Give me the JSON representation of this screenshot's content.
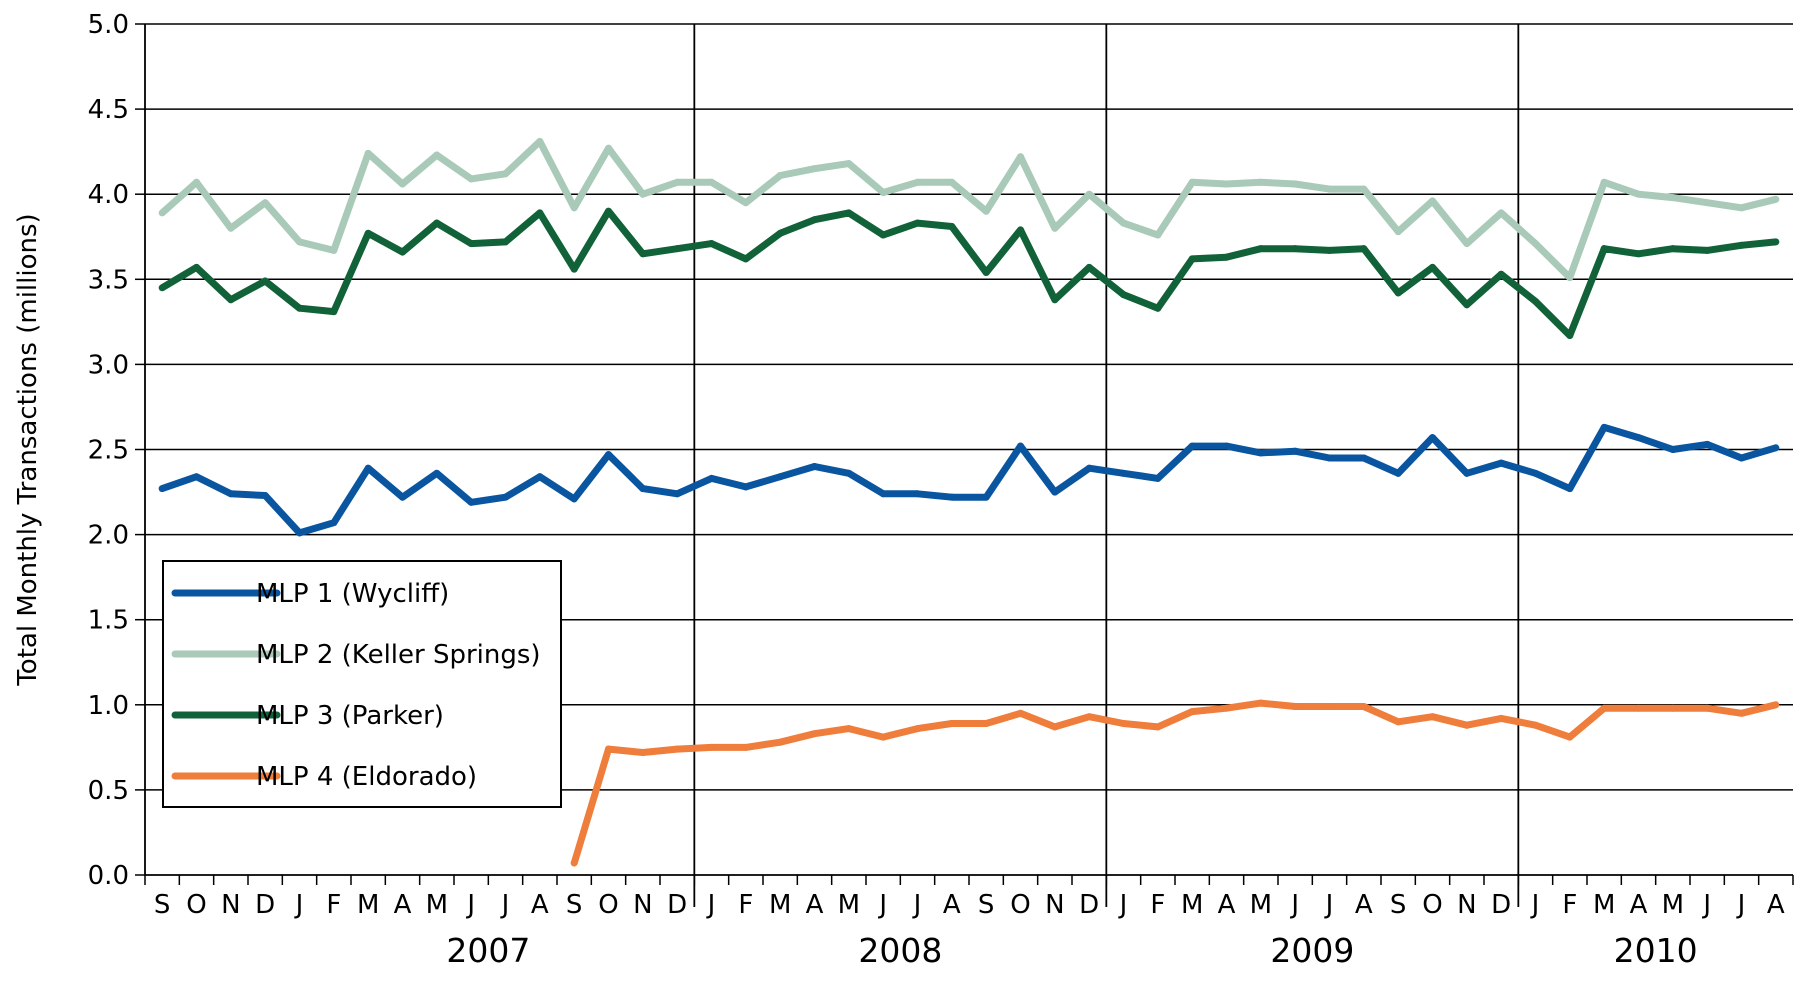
{
  "chart_data": {
    "type": "line",
    "title": "",
    "ylabel": "Total Monthly Transactions (millions)",
    "xlabel": "",
    "ylim": [
      0,
      5
    ],
    "yticks": [
      "0.0",
      "0.5",
      "1.0",
      "1.5",
      "2.0",
      "2.5",
      "3.0",
      "3.5",
      "4.0",
      "4.5",
      "5.0"
    ],
    "grid": true,
    "legend_position": "bottom-left",
    "month_labels": [
      "S",
      "O",
      "N",
      "D",
      "J",
      "F",
      "M",
      "A",
      "M",
      "J",
      "J",
      "A",
      "S",
      "O",
      "N",
      "D",
      "J",
      "F",
      "M",
      "A",
      "M",
      "J",
      "J",
      "A",
      "S",
      "O",
      "N",
      "D",
      "J",
      "F",
      "M",
      "A",
      "M",
      "J",
      "J",
      "A",
      "S",
      "O",
      "N",
      "D",
      "J",
      "F",
      "M",
      "A",
      "M",
      "J",
      "J",
      "A"
    ],
    "years": [
      {
        "label": "2007",
        "start_index": 4,
        "end_index": 15
      },
      {
        "label": "2008",
        "start_index": 16,
        "end_index": 27
      },
      {
        "label": "2009",
        "start_index": 28,
        "end_index": 39
      },
      {
        "label": "2010",
        "start_index": 40,
        "end_index": 47
      }
    ],
    "series": [
      {
        "name": "MLP 1 (Wycliff)",
        "color": "#0a55a0",
        "values": [
          2.27,
          2.34,
          2.24,
          2.23,
          2.01,
          2.07,
          2.39,
          2.22,
          2.36,
          2.19,
          2.22,
          2.34,
          2.21,
          2.47,
          2.27,
          2.24,
          2.33,
          2.28,
          2.34,
          2.4,
          2.36,
          2.24,
          2.24,
          2.22,
          2.22,
          2.52,
          2.25,
          2.39,
          2.36,
          2.33,
          2.52,
          2.52,
          2.48,
          2.49,
          2.45,
          2.45,
          2.36,
          2.57,
          2.36,
          2.42,
          2.36,
          2.27,
          2.63,
          2.57,
          2.5,
          2.53,
          2.45,
          2.51
        ]
      },
      {
        "name": "MLP 2 (Keller Springs)",
        "color": "#a9c9b9",
        "values": [
          3.89,
          4.07,
          3.8,
          3.95,
          3.72,
          3.67,
          4.24,
          4.06,
          4.23,
          4.09,
          4.12,
          4.31,
          3.92,
          4.27,
          4.0,
          4.07,
          4.07,
          3.95,
          4.11,
          4.15,
          4.18,
          4.01,
          4.07,
          4.07,
          3.9,
          4.22,
          3.8,
          4.0,
          3.83,
          3.76,
          4.07,
          4.06,
          4.07,
          4.06,
          4.03,
          4.03,
          3.78,
          3.96,
          3.71,
          3.89,
          3.71,
          3.51,
          4.07,
          4.0,
          3.98,
          3.95,
          3.92,
          3.97
        ]
      },
      {
        "name": "MLP 3 (Parker)",
        "color": "#116238",
        "values": [
          3.45,
          3.57,
          3.38,
          3.49,
          3.33,
          3.31,
          3.77,
          3.66,
          3.83,
          3.71,
          3.72,
          3.89,
          3.56,
          3.9,
          3.65,
          3.68,
          3.71,
          3.62,
          3.77,
          3.85,
          3.89,
          3.76,
          3.83,
          3.81,
          3.54,
          3.79,
          3.38,
          3.57,
          3.41,
          3.33,
          3.62,
          3.63,
          3.68,
          3.68,
          3.67,
          3.68,
          3.42,
          3.57,
          3.35,
          3.53,
          3.37,
          3.17,
          3.68,
          3.65,
          3.68,
          3.67,
          3.7,
          3.72
        ]
      },
      {
        "name": "MLP 4 (Eldorado)",
        "color": "#ef7d3b",
        "values": [
          null,
          null,
          null,
          null,
          null,
          null,
          null,
          null,
          null,
          null,
          null,
          null,
          0.07,
          0.74,
          0.72,
          0.74,
          0.75,
          0.75,
          0.78,
          0.83,
          0.86,
          0.81,
          0.86,
          0.89,
          0.89,
          0.95,
          0.87,
          0.93,
          0.89,
          0.87,
          0.96,
          0.98,
          1.01,
          0.99,
          0.99,
          0.99,
          0.9,
          0.93,
          0.88,
          0.92,
          0.88,
          0.81,
          0.98,
          0.98,
          0.98,
          0.98,
          0.95,
          1.0
        ]
      }
    ]
  }
}
